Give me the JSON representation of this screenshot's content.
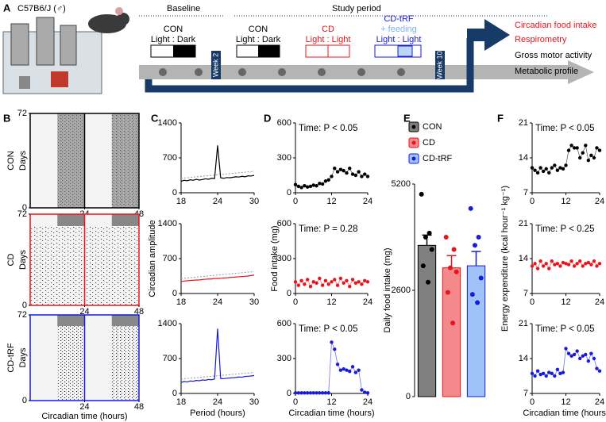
{
  "panel_a": {
    "label": "A",
    "strain": "C57B6/J (♂)",
    "baseline": "Baseline",
    "study_period": "Study period",
    "groups": [
      {
        "name": "CON",
        "light": "Light : Dark"
      },
      {
        "name": "CON",
        "light": "Light : Dark"
      },
      {
        "name": "CD",
        "light": "Light : Light"
      },
      {
        "name": "CD-tRF",
        "feeding": "+ feeding",
        "light": "Light : Light"
      }
    ],
    "weeks": [
      "Week 2",
      "Week 10"
    ],
    "outcomes": [
      "Circadian food intake",
      "Respirometry",
      "Gross motor activity",
      "Metabolic profile"
    ]
  },
  "panel_labels": [
    "B",
    "C",
    "D",
    "E",
    "F"
  ],
  "chart_data": [
    {
      "type": "actogram",
      "title": "CON",
      "ylabel": "Days",
      "xlim": [
        0,
        48
      ],
      "ylim": [
        0,
        72
      ],
      "xticks": [
        24,
        48
      ],
      "yticks": [
        0,
        72
      ],
      "color": "#000000"
    },
    {
      "type": "actogram",
      "title": "CD",
      "ylabel": "Days",
      "xlim": [
        0,
        48
      ],
      "ylim": [
        0,
        72
      ],
      "xticks": [
        24,
        48
      ],
      "yticks": [
        0,
        72
      ],
      "color": "#e8141c"
    },
    {
      "type": "actogram",
      "title": "CD-tRF",
      "ylabel": "Days",
      "xlabel": "Circadian time (hours)",
      "xlim": [
        0,
        48
      ],
      "ylim": [
        0,
        72
      ],
      "xticks": [
        24,
        48
      ],
      "yticks": [
        0,
        72
      ],
      "color": "#1a1adb"
    },
    {
      "type": "line",
      "xlim": [
        18,
        30
      ],
      "ylim": [
        0,
        1400
      ],
      "xticks": [
        18,
        24,
        30
      ],
      "yticks": [
        0,
        700,
        1400
      ],
      "x": [
        18,
        18.5,
        19,
        19.5,
        20,
        20.5,
        21,
        21.5,
        22,
        22.5,
        23,
        23.5,
        24,
        24.5,
        25,
        25.5,
        26,
        26.5,
        27,
        27.5,
        28,
        28.5,
        29,
        29.5,
        30
      ],
      "series": [
        {
          "color": "#000000",
          "values": [
            230,
            250,
            240,
            260,
            250,
            270,
            255,
            265,
            280,
            270,
            290,
            285,
            950,
            300,
            290,
            305,
            300,
            310,
            320,
            315,
            330,
            320,
            340,
            335,
            350
          ]
        }
      ],
      "threshold": {
        "x": [
          18,
          30
        ],
        "values": [
          290,
          430
        ],
        "color": "#999999"
      }
    },
    {
      "type": "line",
      "ylabel": "Circadian amplitude",
      "xlim": [
        18,
        30
      ],
      "ylim": [
        0,
        1400
      ],
      "xticks": [
        18,
        24,
        30
      ],
      "yticks": [
        0,
        700,
        1400
      ],
      "x": [
        18,
        18.5,
        19,
        19.5,
        20,
        20.5,
        21,
        21.5,
        22,
        22.5,
        23,
        23.5,
        24,
        24.5,
        25,
        25.5,
        26,
        26.5,
        27,
        27.5,
        28,
        28.5,
        29,
        29.5,
        30
      ],
      "series": [
        {
          "color": "#e8141c",
          "values": [
            240,
            250,
            255,
            260,
            265,
            270,
            270,
            280,
            285,
            290,
            290,
            300,
            300,
            305,
            310,
            315,
            320,
            325,
            330,
            335,
            340,
            345,
            350,
            360,
            370
          ]
        }
      ],
      "threshold": {
        "x": [
          18,
          30
        ],
        "values": [
          300,
          440
        ],
        "color": "#999999"
      }
    },
    {
      "type": "line",
      "xlabel": "Period (hours)",
      "xlim": [
        18,
        30
      ],
      "ylim": [
        0,
        1400
      ],
      "xticks": [
        18,
        24,
        30
      ],
      "yticks": [
        0,
        700,
        1400
      ],
      "x": [
        18,
        18.5,
        19,
        19.5,
        20,
        20.5,
        21,
        21.5,
        22,
        22.5,
        23,
        23.5,
        24,
        24.5,
        25,
        25.5,
        26,
        26.5,
        27,
        27.5,
        28,
        28.5,
        29,
        29.5,
        30
      ],
      "series": [
        {
          "color": "#1a1adb",
          "values": [
            220,
            240,
            230,
            250,
            245,
            260,
            255,
            270,
            265,
            280,
            275,
            290,
            1300,
            300,
            295,
            305,
            310,
            315,
            320,
            330,
            325,
            340,
            345,
            350,
            360
          ]
        }
      ],
      "threshold": {
        "x": [
          18,
          30
        ],
        "values": [
          290,
          420
        ],
        "color": "#999999"
      }
    },
    {
      "type": "line",
      "annotation": "Time: P < 0.05",
      "markers": true,
      "xlim": [
        0,
        24
      ],
      "ylim": [
        0,
        600
      ],
      "xticks": [
        0,
        12,
        24
      ],
      "yticks": [
        0,
        300,
        600
      ],
      "x": [
        0,
        1,
        2,
        3,
        4,
        5,
        6,
        7,
        8,
        9,
        10,
        11,
        12,
        13,
        14,
        15,
        16,
        17,
        18,
        19,
        20,
        21,
        22,
        23,
        24
      ],
      "series": [
        {
          "color": "#000000",
          "values": [
            70,
            55,
            45,
            60,
            50,
            55,
            65,
            60,
            80,
            75,
            100,
            110,
            140,
            210,
            180,
            200,
            190,
            170,
            210,
            160,
            150,
            180,
            140,
            160,
            140
          ]
        }
      ]
    },
    {
      "type": "line",
      "annotation": "Time: P = 0.28",
      "ylabel": "Food intake (mg)",
      "markers": true,
      "xlim": [
        0,
        24
      ],
      "ylim": [
        0,
        600
      ],
      "xticks": [
        0,
        12,
        24
      ],
      "yticks": [
        0,
        300,
        600
      ],
      "x": [
        0,
        1,
        2,
        3,
        4,
        5,
        6,
        7,
        8,
        9,
        10,
        11,
        12,
        13,
        14,
        15,
        16,
        17,
        18,
        19,
        20,
        21,
        22,
        23,
        24
      ],
      "series": [
        {
          "color": "#e8141c",
          "values": [
            100,
            70,
            110,
            80,
            120,
            60,
            100,
            90,
            130,
            70,
            110,
            80,
            100,
            120,
            70,
            130,
            90,
            110,
            60,
            120,
            90,
            100,
            80,
            110,
            100
          ]
        }
      ]
    },
    {
      "type": "line",
      "annotation": "Time: P < 0.05",
      "xlabel": "Circadian time (hours)",
      "markers": true,
      "xlim": [
        0,
        24
      ],
      "ylim": [
        0,
        600
      ],
      "xticks": [
        0,
        12,
        24
      ],
      "yticks": [
        0,
        300,
        600
      ],
      "x": [
        0,
        1,
        2,
        3,
        4,
        5,
        6,
        7,
        8,
        9,
        10,
        11,
        12,
        13,
        14,
        15,
        16,
        17,
        18,
        19,
        20,
        21,
        22,
        23,
        24
      ],
      "series": [
        {
          "color": "#1a1adb",
          "values": [
            5,
            5,
            5,
            5,
            5,
            5,
            5,
            5,
            5,
            5,
            5,
            5,
            440,
            380,
            250,
            200,
            210,
            200,
            190,
            230,
            180,
            200,
            30,
            10,
            5
          ]
        }
      ]
    },
    {
      "type": "bar",
      "ylabel": "Daily food intake (mg)",
      "ylim": [
        0,
        5200
      ],
      "yticks": [
        0,
        2600,
        5200
      ],
      "categories": [
        "CON",
        "CD",
        "CD-tRF"
      ],
      "values": [
        3700,
        3150,
        3200
      ],
      "errors": [
        250,
        300,
        350
      ],
      "colors": [
        "#808080",
        "#f4898c",
        "#9fc3f7"
      ],
      "edges": [
        "#000000",
        "#e8141c",
        "#1a1adb"
      ],
      "points": [
        [
          4950,
          4000,
          3900,
          3600,
          3200,
          2800
        ],
        [
          3900,
          3600,
          3150,
          3050,
          2550,
          1800
        ],
        [
          4600,
          3900,
          3700,
          2900,
          2500,
          2300
        ]
      ]
    },
    {
      "type": "line",
      "annotation": "Time: P < 0.05",
      "markers": true,
      "xlim": [
        0,
        24
      ],
      "ylim": [
        7,
        21
      ],
      "xticks": [
        0,
        12,
        24
      ],
      "yticks": [
        7,
        14,
        21
      ],
      "x": [
        0,
        1,
        2,
        3,
        4,
        5,
        6,
        7,
        8,
        9,
        10,
        11,
        12,
        13,
        14,
        15,
        16,
        17,
        18,
        19,
        20,
        21,
        22,
        23,
        24
      ],
      "series": [
        {
          "color": "#000000",
          "values": [
            12,
            11.5,
            11,
            12,
            11.3,
            11.8,
            11,
            12,
            12.5,
            11.5,
            12,
            11.8,
            12.5,
            15.5,
            16.5,
            16,
            16,
            14,
            15,
            16.5,
            13.5,
            14.5,
            14,
            16,
            15.5
          ]
        }
      ]
    },
    {
      "type": "line",
      "annotation": "Time: P < 0.25",
      "ylabel": "Energy expenditure (kcal hour⁻¹ kg⁻¹)",
      "markers": true,
      "xlim": [
        0,
        24
      ],
      "ylim": [
        7,
        21
      ],
      "xticks": [
        0,
        12,
        24
      ],
      "yticks": [
        7,
        14,
        21
      ],
      "x": [
        0,
        1,
        2,
        3,
        4,
        5,
        6,
        7,
        8,
        9,
        10,
        11,
        12,
        13,
        14,
        15,
        16,
        17,
        18,
        19,
        20,
        21,
        22,
        23,
        24
      ],
      "series": [
        {
          "color": "#e8141c",
          "values": [
            12.5,
            13,
            12,
            13.5,
            12.5,
            13,
            12,
            13.5,
            12.8,
            13,
            12.5,
            13.2,
            13,
            12.8,
            13.5,
            12.5,
            13,
            13.5,
            12.5,
            13,
            13.2,
            12.8,
            13.5,
            12.5,
            13
          ]
        }
      ]
    },
    {
      "type": "line",
      "annotation": "Time: P < 0.05",
      "xlabel": "Circadian time (hours)",
      "markers": true,
      "xlim": [
        0,
        24
      ],
      "ylim": [
        7,
        21
      ],
      "xticks": [
        0,
        12,
        24
      ],
      "yticks": [
        7,
        14,
        21
      ],
      "x": [
        0,
        1,
        2,
        3,
        4,
        5,
        6,
        7,
        8,
        9,
        10,
        11,
        12,
        13,
        14,
        15,
        16,
        17,
        18,
        19,
        20,
        21,
        22,
        23,
        24
      ],
      "series": [
        {
          "color": "#1a1adb",
          "values": [
            11,
            10.5,
            11.5,
            10.8,
            11,
            10.5,
            11.2,
            11,
            10.5,
            11.8,
            11,
            11.2,
            16,
            15,
            14.5,
            14.8,
            15.5,
            14,
            14.5,
            14.8,
            13.5,
            15,
            14,
            12,
            11.5
          ]
        }
      ]
    }
  ]
}
